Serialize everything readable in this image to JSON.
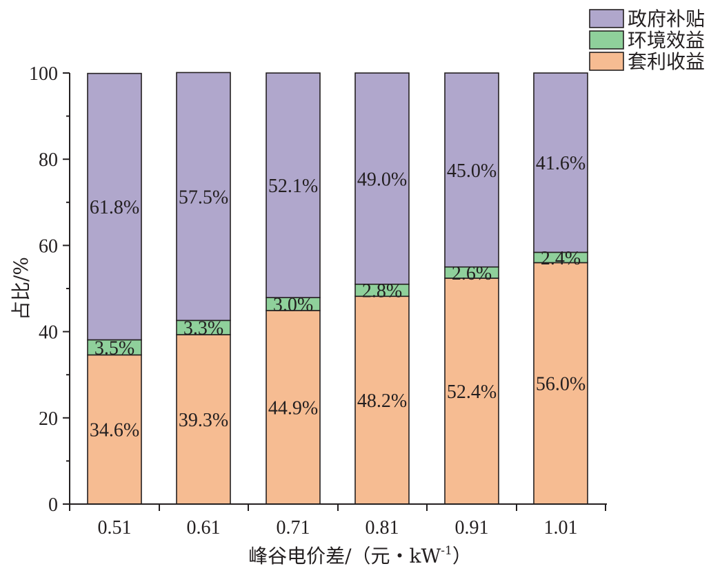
{
  "chart_data": {
    "type": "bar",
    "stacked": true,
    "categories": [
      "0.51",
      "0.61",
      "0.71",
      "0.81",
      "0.91",
      "1.01"
    ],
    "series": [
      {
        "name": "套利收益",
        "color": "#f6bc92",
        "values": [
          34.6,
          39.3,
          44.9,
          48.2,
          52.4,
          56.0
        ],
        "labels": [
          "34.6%",
          "39.3%",
          "44.9%",
          "48.2%",
          "52.4%",
          "56.0%"
        ]
      },
      {
        "name": "环境效益",
        "color": "#8fd09b",
        "values": [
          3.5,
          3.3,
          3.0,
          2.8,
          2.6,
          2.4
        ],
        "labels": [
          "3.5%",
          "3.3%",
          "3.0%",
          "2.8%",
          "2.6%",
          "2.4%"
        ]
      },
      {
        "name": "政府补贴",
        "color": "#b0a7cc",
        "values": [
          61.8,
          57.5,
          52.1,
          49.0,
          45.0,
          41.6
        ],
        "labels": [
          "61.8%",
          "57.5%",
          "52.1%",
          "49.0%",
          "45.0%",
          "41.6%"
        ]
      }
    ],
    "legend_order": [
      "政府补贴",
      "环境效益",
      "套利收益"
    ],
    "legend_position": "top-right",
    "xlabel": "峰谷电价差/（元・kW",
    "xlabel_sup": "-1",
    "xlabel_end": "）",
    "ylabel": "占比/%",
    "ylim": [
      0,
      100
    ],
    "yticks": [
      0,
      20,
      40,
      60,
      80,
      100
    ],
    "grid": false
  }
}
